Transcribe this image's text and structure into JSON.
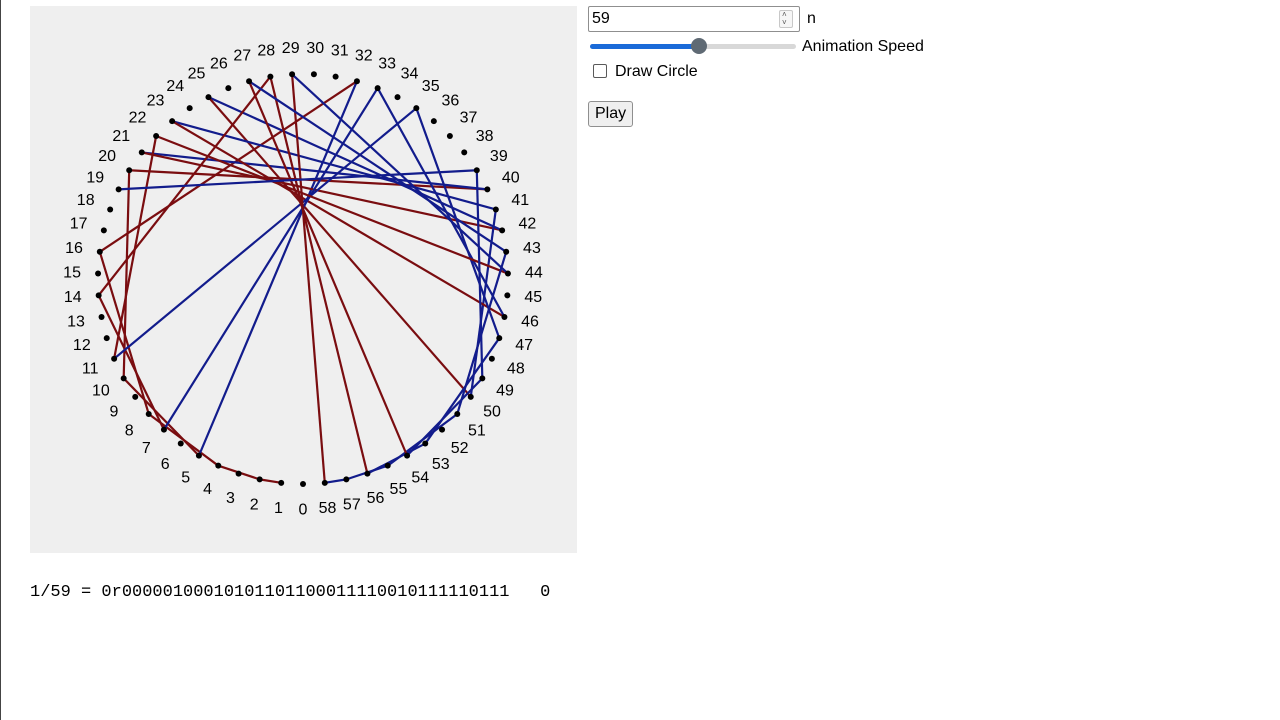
{
  "controls": {
    "n_value": "59",
    "n_label": "n",
    "speed_label": "Animation Speed",
    "speed_fraction": 0.53,
    "draw_circle_label": "Draw Circle",
    "draw_circle_checked": false,
    "play_label": "Play"
  },
  "visualization": {
    "n": 59,
    "digits": "00000100010101101100011110010111110111",
    "line_colors": {
      "one": "#121c8c",
      "zero": "#7a0d10"
    },
    "point_color": "#000000",
    "background": "#efefef"
  },
  "result": {
    "text": "1/59 = 0r00000100010101101100011110010111110111   0"
  },
  "colors": {
    "accent": "#1a6ad8"
  }
}
